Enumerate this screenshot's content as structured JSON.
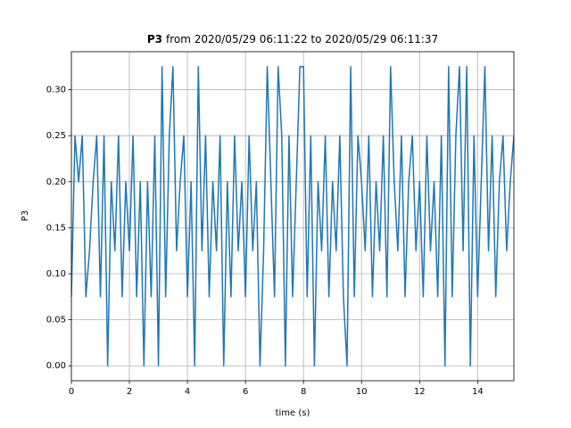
{
  "chart_data": {
    "type": "line",
    "title_bold": "P3",
    "title": "from 2020/05/29 06:11:22 to 2020/05/29 06:11:37",
    "x_label": "time (s)",
    "y_label": "P3",
    "color": "#1f77b4",
    "grid": true,
    "xlim": [
      0,
      15.25
    ],
    "ylim": [
      -0.01625,
      0.34125
    ],
    "xticks": [
      0,
      2,
      4,
      6,
      8,
      10,
      12,
      14
    ],
    "yticks": [
      {
        "value": 0,
        "label": "0.00"
      },
      {
        "value": 0.05,
        "label": "0.05"
      },
      {
        "value": 0.1,
        "label": "0.10"
      },
      {
        "value": 0.15,
        "label": "0.15"
      },
      {
        "value": 0.2,
        "label": "0.20"
      },
      {
        "value": 0.25,
        "label": "0.25"
      },
      {
        "value": 0.3,
        "label": "0.30"
      }
    ],
    "x": [
      0,
      0.125,
      0.25,
      0.375,
      0.5,
      0.625,
      0.75,
      0.875,
      1,
      1.125,
      1.25,
      1.375,
      1.5,
      1.625,
      1.75,
      1.875,
      2,
      2.125,
      2.25,
      2.375,
      2.5,
      2.625,
      2.75,
      2.875,
      3,
      3.125,
      3.25,
      3.375,
      3.5,
      3.625,
      3.75,
      3.875,
      4,
      4.125,
      4.25,
      4.375,
      4.5,
      4.625,
      4.75,
      4.875,
      5,
      5.125,
      5.25,
      5.375,
      5.5,
      5.625,
      5.75,
      5.875,
      6,
      6.125,
      6.25,
      6.375,
      6.5,
      6.625,
      6.75,
      6.875,
      7,
      7.125,
      7.25,
      7.375,
      7.5,
      7.625,
      7.75,
      7.875,
      8,
      8.125,
      8.25,
      8.375,
      8.5,
      8.625,
      8.75,
      8.875,
      9,
      9.125,
      9.25,
      9.375,
      9.5,
      9.625,
      9.75,
      9.875,
      10,
      10.125,
      10.25,
      10.375,
      10.5,
      10.625,
      10.75,
      10.875,
      11,
      11.125,
      11.25,
      11.375,
      11.5,
      11.625,
      11.75,
      11.875,
      12,
      12.125,
      12.25,
      12.375,
      12.5,
      12.625,
      12.75,
      12.875,
      13,
      13.125,
      13.25,
      13.375,
      13.5,
      13.625,
      13.75,
      13.875,
      14,
      14.125,
      14.25,
      14.375,
      14.5,
      14.625,
      14.75,
      14.875,
      15,
      15.125,
      15.25
    ],
    "values": [
      0.075,
      0.25,
      0.2,
      0.25,
      0.075,
      0.125,
      0.2,
      0.25,
      0.075,
      0.25,
      0,
      0.2,
      0.125,
      0.25,
      0.075,
      0.2,
      0.125,
      0.25,
      0.075,
      0.2,
      0,
      0.2,
      0.075,
      0.25,
      0,
      0.325,
      0.075,
      0.25,
      0.325,
      0.125,
      0.2,
      0.25,
      0.075,
      0.2,
      0,
      0.325,
      0.125,
      0.25,
      0.075,
      0.2,
      0.125,
      0.25,
      0,
      0.2,
      0.075,
      0.25,
      0.125,
      0.2,
      0.075,
      0.25,
      0.125,
      0.2,
      0,
      0.125,
      0.325,
      0.2,
      0.075,
      0.325,
      0.25,
      0,
      0.25,
      0.075,
      0.2,
      0.325,
      0.325,
      0.075,
      0.25,
      0,
      0.2,
      0.125,
      0.25,
      0.075,
      0.2,
      0.125,
      0.25,
      0.075,
      0,
      0.325,
      0.075,
      0.25,
      0.2,
      0.125,
      0.25,
      0.075,
      0.2,
      0.125,
      0.25,
      0.075,
      0.325,
      0.2,
      0.125,
      0.25,
      0.075,
      0.2,
      0.25,
      0.125,
      0.2,
      0.075,
      0.25,
      0.125,
      0.2,
      0.075,
      0.25,
      0,
      0.325,
      0.075,
      0.25,
      0.325,
      0.125,
      0.325,
      0,
      0.25,
      0.075,
      0.2,
      0.325,
      0.125,
      0.25,
      0.075,
      0.2,
      0.25,
      0.125,
      0.2,
      0.25
    ]
  }
}
